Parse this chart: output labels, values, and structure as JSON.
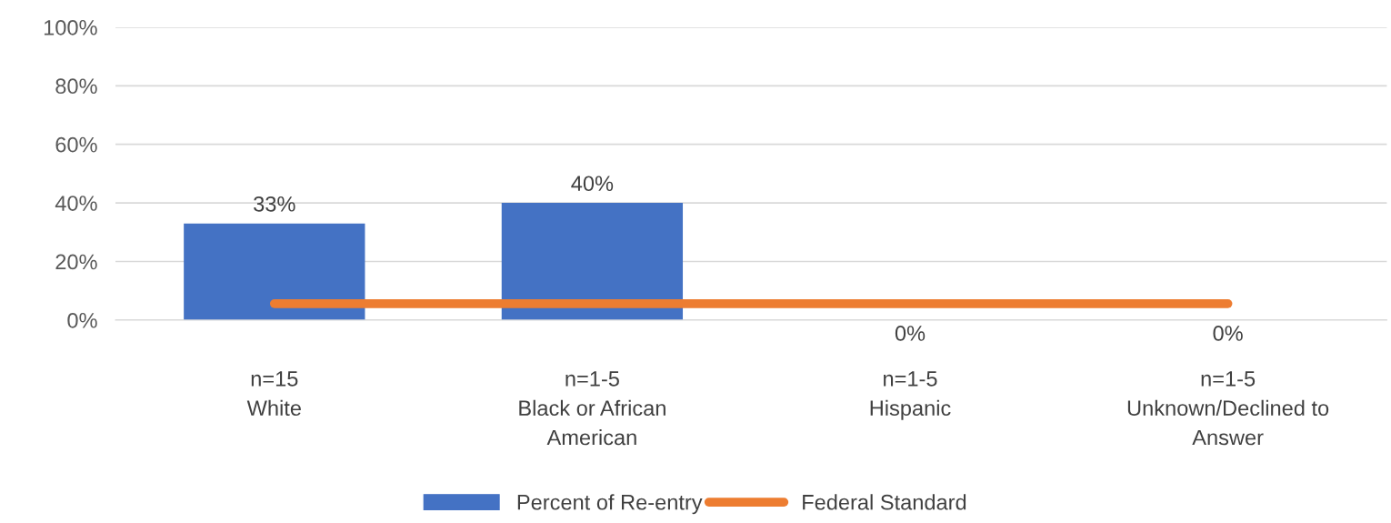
{
  "chart_data": {
    "type": "bar",
    "categories": [
      "n=15\nWhite",
      "n=1-5\nBlack or African\nAmerican",
      "n=1-5\nHispanic",
      "n=1-5\nUnknown/Declined to\nAnswer"
    ],
    "series": [
      {
        "name": "Percent of Re-entry",
        "color": "#4472c4",
        "values": [
          33,
          40,
          0,
          0
        ],
        "value_labels": [
          "33%",
          "40%",
          "0%",
          "0%"
        ]
      },
      {
        "name": "Federal Standard",
        "type": "line",
        "color": "#ed7d31",
        "values": [
          5.6,
          5.6,
          5.6,
          5.6
        ]
      }
    ],
    "ylim": [
      0,
      100
    ],
    "yticks": [
      {
        "value": 0,
        "label": "0%"
      },
      {
        "value": 20,
        "label": "20%"
      },
      {
        "value": 40,
        "label": "40%"
      },
      {
        "value": 60,
        "label": "60%"
      },
      {
        "value": 80,
        "label": "80%"
      },
      {
        "value": 100,
        "label": "100%"
      }
    ],
    "grid": "y",
    "legend": "bottom",
    "marker": "none"
  }
}
